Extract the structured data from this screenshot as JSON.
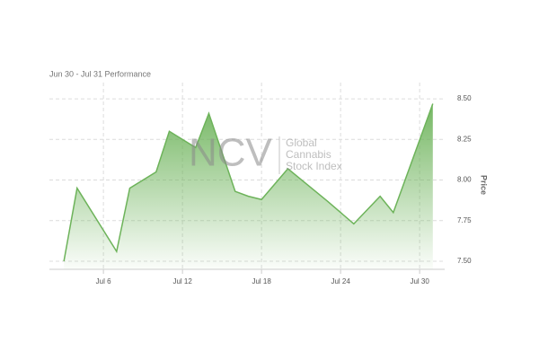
{
  "chart_data": {
    "type": "area",
    "subtitle": "Jun 30 - Jul 31 Performance",
    "y_label": "Price",
    "watermark": {
      "logo": "NCV",
      "lines": [
        "Global",
        "Cannabis",
        "Stock Index"
      ]
    },
    "x": [
      3,
      4,
      7,
      8,
      10,
      11,
      13,
      14,
      16,
      17,
      18,
      20,
      23,
      25,
      27,
      28,
      31
    ],
    "series": [
      {
        "name": "Price",
        "color": "#6db35a",
        "values": [
          7.5,
          7.95,
          7.56,
          7.95,
          8.05,
          8.3,
          8.2,
          8.41,
          7.93,
          7.9,
          7.88,
          8.07,
          7.87,
          7.73,
          7.9,
          7.8,
          8.47
        ]
      }
    ],
    "xlim": [
      1.9,
      31.9
    ],
    "xticks": [
      {
        "value": 6,
        "label": "Jul 6"
      },
      {
        "value": 12,
        "label": "Jul 12"
      },
      {
        "value": 18,
        "label": "Jul 18"
      },
      {
        "value": 24,
        "label": "Jul 24"
      },
      {
        "value": 30,
        "label": "Jul 30"
      }
    ],
    "ylim": [
      7.45,
      8.6
    ],
    "yticks": [
      {
        "value": 7.5,
        "label": "7.50"
      },
      {
        "value": 7.75,
        "label": "7.75"
      },
      {
        "value": 8,
        "label": "8.00"
      },
      {
        "value": 8.25,
        "label": "8.25"
      },
      {
        "value": 8.5,
        "label": "8.50"
      }
    ],
    "grid": true
  }
}
